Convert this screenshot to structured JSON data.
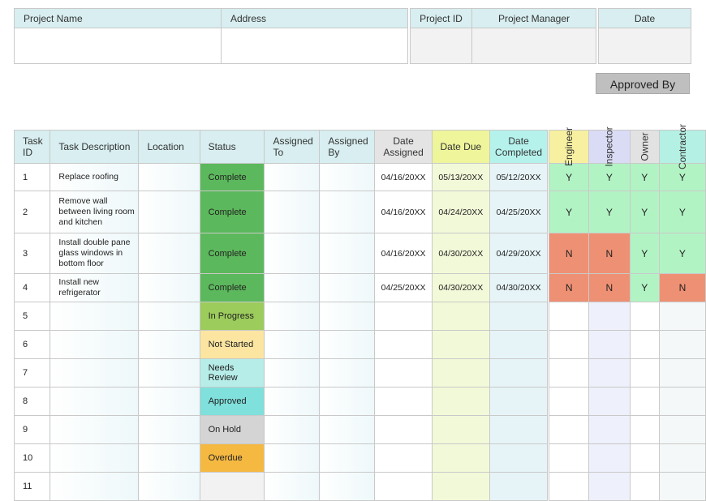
{
  "project_header": {
    "columns": [
      "Project Name",
      "Address",
      "Project ID",
      "Project Manager",
      "Date"
    ]
  },
  "approved_by": {
    "title": "Approved By",
    "columns": [
      "Engineer",
      "Inspector",
      "Owner",
      "Contractor"
    ]
  },
  "task_table": {
    "headers": {
      "task_id": "Task ID",
      "task_description": "Task Description",
      "location": "Location",
      "status": "Status",
      "assigned_to": "Assigned To",
      "assigned_by": "Assigned By",
      "date_assigned": "Date Assigned",
      "date_due": "Date Due",
      "date_completed": "Date Completed"
    },
    "rows": [
      {
        "id": "1",
        "desc": "Replace roofing",
        "location": "",
        "status": "Complete",
        "status_color": "#5cb85c",
        "assigned_to": "",
        "assigned_by": "",
        "date_assigned": "04/16/20XX",
        "date_due": "05/13/20XX",
        "date_completed": "05/12/20XX",
        "approvals": [
          "Y",
          "Y",
          "Y",
          "Y"
        ]
      },
      {
        "id": "2",
        "desc": "Remove wall between living room and kitchen",
        "location": "",
        "status": "Complete",
        "status_color": "#5cb85c",
        "assigned_to": "",
        "assigned_by": "",
        "date_assigned": "04/16/20XX",
        "date_due": "04/24/20XX",
        "date_completed": "04/25/20XX",
        "approvals": [
          "Y",
          "Y",
          "Y",
          "Y"
        ]
      },
      {
        "id": "3",
        "desc": "Install double pane glass windows in bottom floor",
        "location": "",
        "status": "Complete",
        "status_color": "#5cb85c",
        "assigned_to": "",
        "assigned_by": "",
        "date_assigned": "04/16/20XX",
        "date_due": "04/30/20XX",
        "date_completed": "04/29/20XX",
        "approvals": [
          "N",
          "N",
          "Y",
          "Y"
        ]
      },
      {
        "id": "4",
        "desc": "Install new refrigerator",
        "location": "",
        "status": "Complete",
        "status_color": "#5cb85c",
        "assigned_to": "",
        "assigned_by": "",
        "date_assigned": "04/25/20XX",
        "date_due": "04/30/20XX",
        "date_completed": "04/30/20XX",
        "approvals": [
          "N",
          "N",
          "Y",
          "N"
        ]
      },
      {
        "id": "5",
        "desc": "",
        "location": "",
        "status": "In Progress",
        "status_color": "#9ccc5c",
        "assigned_to": "",
        "assigned_by": "",
        "date_assigned": "",
        "date_due": "",
        "date_completed": "",
        "approvals": [
          "",
          "",
          "",
          ""
        ]
      },
      {
        "id": "6",
        "desc": "",
        "location": "",
        "status": "Not Started",
        "status_color": "#fbe5a0",
        "assigned_to": "",
        "assigned_by": "",
        "date_assigned": "",
        "date_due": "",
        "date_completed": "",
        "approvals": [
          "",
          "",
          "",
          ""
        ]
      },
      {
        "id": "7",
        "desc": "",
        "location": "",
        "status": "Needs Review",
        "status_color": "#b6ede8",
        "assigned_to": "",
        "assigned_by": "",
        "date_assigned": "",
        "date_due": "",
        "date_completed": "",
        "approvals": [
          "",
          "",
          "",
          ""
        ]
      },
      {
        "id": "8",
        "desc": "",
        "location": "",
        "status": "Approved",
        "status_color": "#7fe0dc",
        "assigned_to": "",
        "assigned_by": "",
        "date_assigned": "",
        "date_due": "",
        "date_completed": "",
        "approvals": [
          "",
          "",
          "",
          ""
        ]
      },
      {
        "id": "9",
        "desc": "",
        "location": "",
        "status": "On Hold",
        "status_color": "#d4d4d4",
        "assigned_to": "",
        "assigned_by": "",
        "date_assigned": "",
        "date_due": "",
        "date_completed": "",
        "approvals": [
          "",
          "",
          "",
          ""
        ]
      },
      {
        "id": "10",
        "desc": "",
        "location": "",
        "status": "Overdue",
        "status_color": "#f5b942",
        "assigned_to": "",
        "assigned_by": "",
        "date_assigned": "",
        "date_due": "",
        "date_completed": "",
        "approvals": [
          "",
          "",
          "",
          ""
        ]
      },
      {
        "id": "11",
        "desc": "",
        "location": "",
        "status": "",
        "status_color": "#f2f2f2",
        "assigned_to": "",
        "assigned_by": "",
        "date_assigned": "",
        "date_due": "",
        "date_completed": "",
        "approvals": [
          "",
          "",
          "",
          ""
        ]
      }
    ]
  },
  "colors": {
    "approve_yes": "#b2f3c4",
    "approve_no": "#ee9073"
  }
}
